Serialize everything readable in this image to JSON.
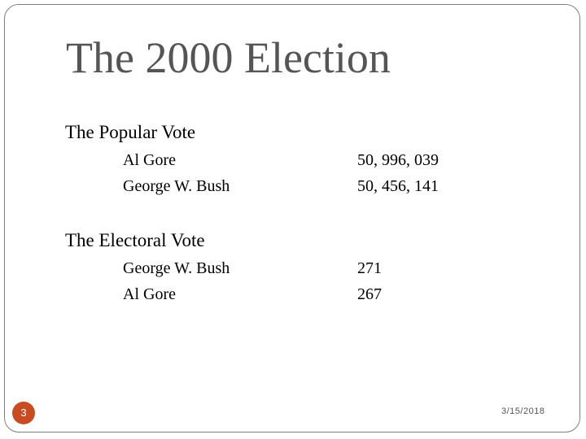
{
  "title": "The 2000 Election",
  "popular": {
    "heading": "The Popular Vote",
    "rows": [
      {
        "label": "Al Gore",
        "value": "50, 996, 039"
      },
      {
        "label": "George W. Bush",
        "value": "50, 456, 141"
      }
    ]
  },
  "electoral": {
    "heading": "The Electoral Vote",
    "rows": [
      {
        "label": "George W. Bush",
        "value": "271"
      },
      {
        "label": "Al Gore",
        "value": "267"
      }
    ]
  },
  "footer": {
    "slide_number": "3",
    "date": "3/15/2018"
  },
  "colors": {
    "accent": "#c84b22",
    "title": "#555555",
    "frame": "#7f7f7f"
  }
}
